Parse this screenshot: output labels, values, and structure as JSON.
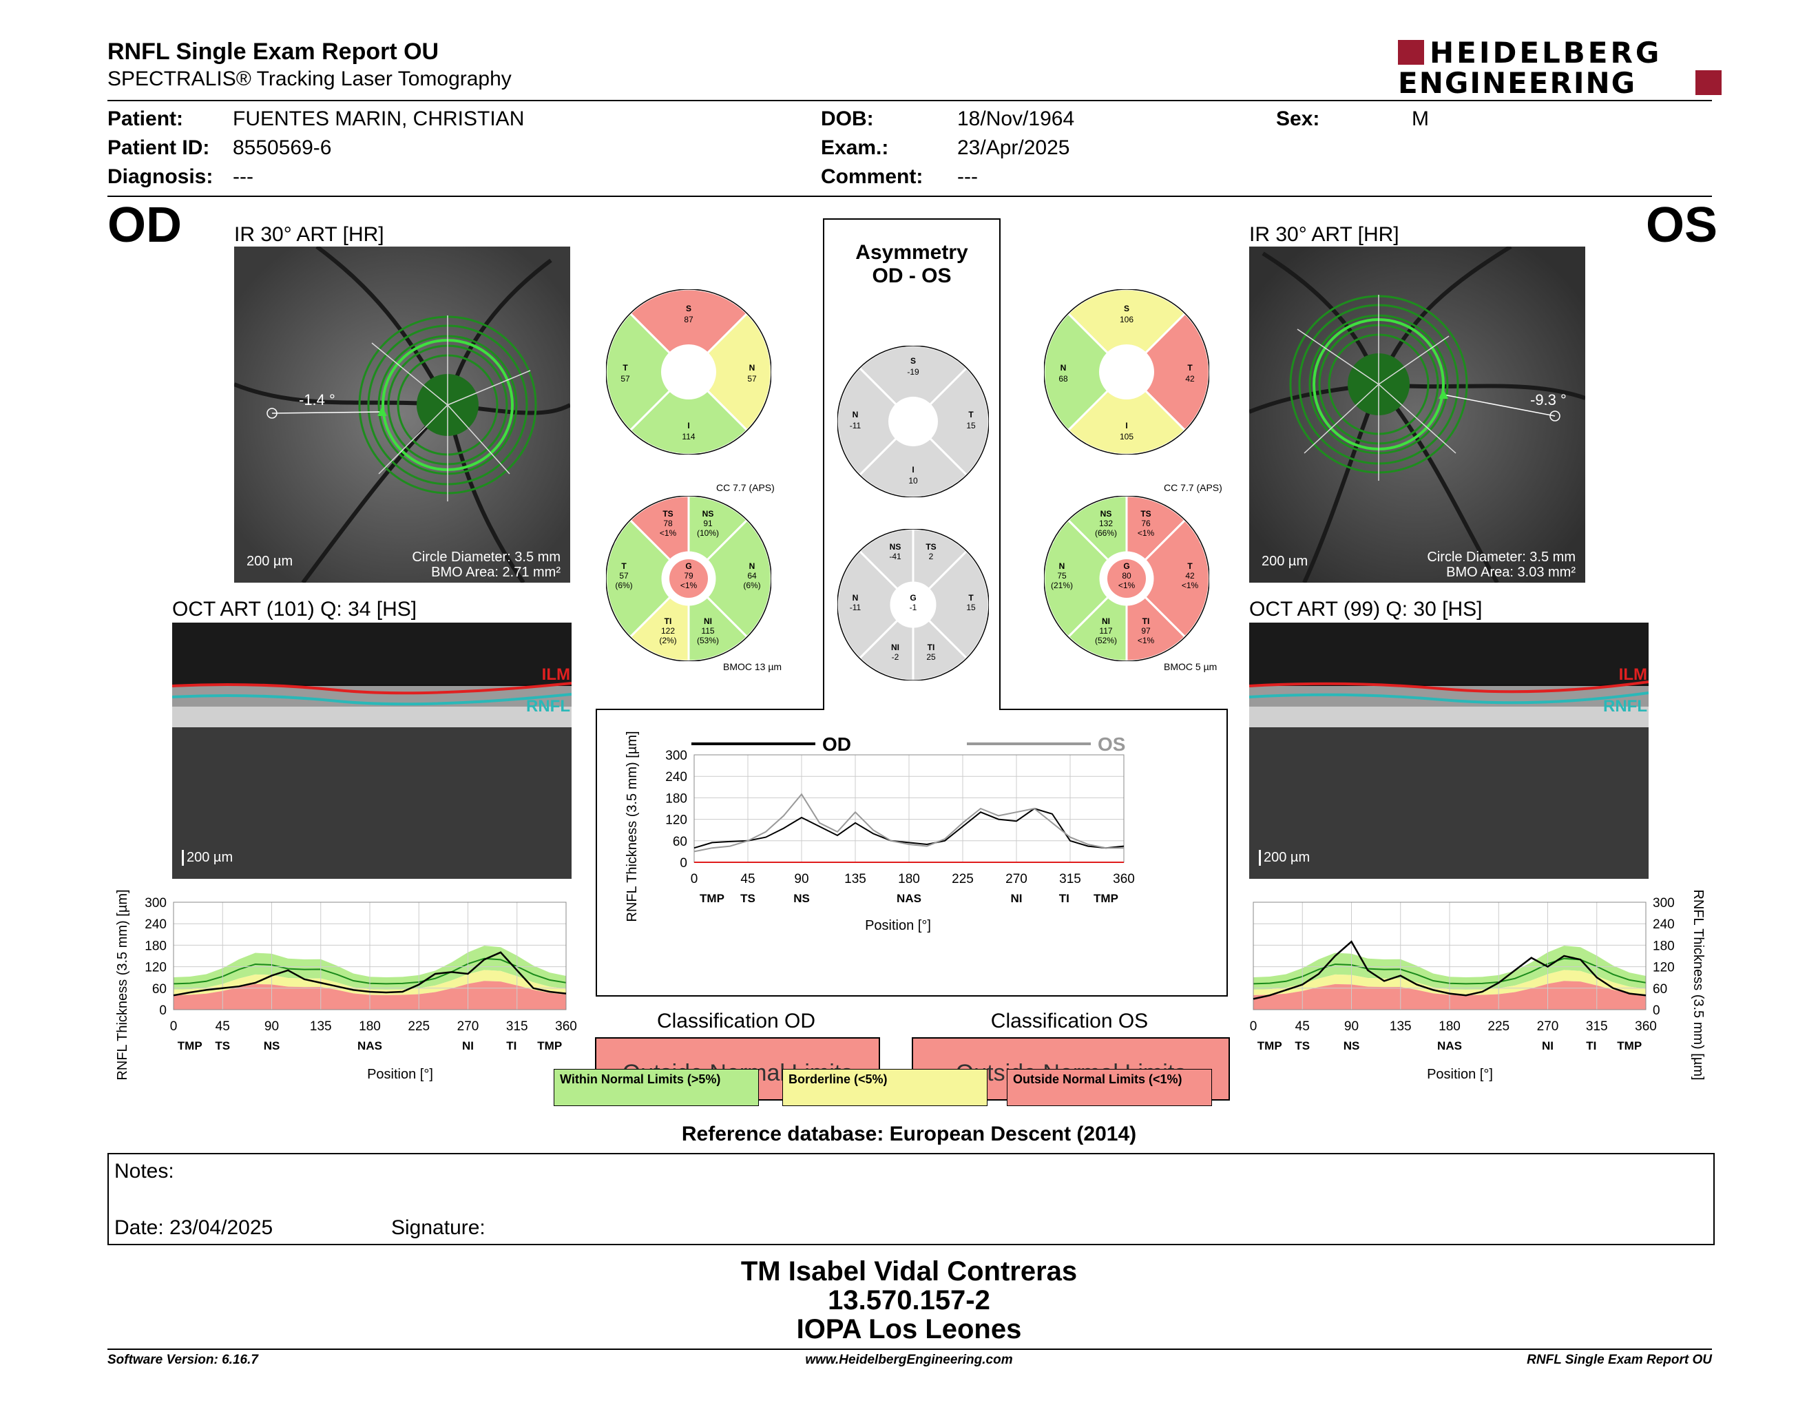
{
  "header": {
    "title": "RNFL Single Exam Report OU",
    "subtitle": "SPECTRALIS® Tracking Laser Tomography",
    "logo_line1": "HEIDELBERG",
    "logo_line2": "ENGINEERING",
    "brand_color": "#9b1b30"
  },
  "patient": {
    "patient_label": "Patient:",
    "patient_value": "FUENTES MARIN, CHRISTIAN",
    "id_label": "Patient ID:",
    "id_value": "8550569-6",
    "diag_label": "Diagnosis:",
    "diag_value": "---",
    "dob_label": "DOB:",
    "dob_value": "18/Nov/1964",
    "exam_label": "Exam.:",
    "exam_value": "23/Apr/2025",
    "comment_label": "Comment:",
    "comment_value": "---",
    "sex_label": "Sex:",
    "sex_value": "M"
  },
  "od": {
    "eye": "OD",
    "ir_label": "IR 30° ART [HR]",
    "angle": "-1.4 °",
    "scale": "200 µm",
    "circle_diameter": "Circle Diameter: 3.5 mm",
    "bmo_area": "BMO Area: 2.71 mm²",
    "oct_label": "OCT ART (101) Q: 34 [HS]",
    "oct_scale": "200 µm",
    "ilm": "ILM",
    "rnfl": "RNFL",
    "sectors4": {
      "S": "87",
      "T": "57",
      "N": "57",
      "I": "114"
    },
    "cc": "CC 7.7 (APS)",
    "bmoc": "BMOC 13 µm",
    "sectors6": {
      "TS": {
        "label": "TS",
        "value": "78",
        "pct": "<1%"
      },
      "NS": {
        "label": "NS",
        "value": "91",
        "pct": "(10%)"
      },
      "T": {
        "label": "T",
        "value": "57",
        "pct": "(6%)"
      },
      "G": {
        "label": "G",
        "value": "79",
        "pct": "<1%"
      },
      "N": {
        "label": "N",
        "value": "64",
        "pct": "(6%)"
      },
      "TI": {
        "label": "TI",
        "value": "122",
        "pct": "(2%)"
      },
      "NI": {
        "label": "NI",
        "value": "115",
        "pct": "(53%)"
      }
    },
    "classification_title": "Classification OD",
    "classification_value": "Outside Normal Limits"
  },
  "os": {
    "eye": "OS",
    "ir_label": "IR 30° ART [HR]",
    "angle": "-9.3 °",
    "scale": "200 µm",
    "circle_diameter": "Circle Diameter: 3.5 mm",
    "bmo_area": "BMO Area: 3.03 mm²",
    "oct_label": "OCT ART (99) Q: 30 [HS]",
    "oct_scale": "200 µm",
    "ilm": "ILM",
    "rnfl": "RNFL",
    "sectors4": {
      "S": "106",
      "N": "68",
      "T": "42",
      "I": "105"
    },
    "cc": "CC 7.7 (APS)",
    "bmoc": "BMOC 5 µm",
    "sectors6": {
      "NS": {
        "label": "NS",
        "value": "132",
        "pct": "(66%)"
      },
      "TS": {
        "label": "TS",
        "value": "76",
        "pct": "<1%"
      },
      "N": {
        "label": "N",
        "value": "75",
        "pct": "(21%)"
      },
      "G": {
        "label": "G",
        "value": "80",
        "pct": "<1%"
      },
      "T": {
        "label": "T",
        "value": "42",
        "pct": "<1%"
      },
      "NI": {
        "label": "NI",
        "value": "117",
        "pct": "(52%)"
      },
      "TI": {
        "label": "TI",
        "value": "97",
        "pct": "<1%"
      }
    },
    "classification_title": "Classification OS",
    "classification_value": "Outside Normal Limits"
  },
  "asymmetry": {
    "title1": "Asymmetry",
    "title2": "OD - OS",
    "sectors4": {
      "S": "-19",
      "N": "-11",
      "T": "15",
      "I": "10"
    },
    "sectors6": {
      "NS": {
        "label": "NS",
        "value": "-41"
      },
      "TS": {
        "label": "TS",
        "value": "2"
      },
      "N": {
        "label": "N",
        "value": "-11"
      },
      "G": {
        "label": "G",
        "value": "-1"
      },
      "T": {
        "label": "T",
        "value": "15"
      },
      "NI": {
        "label": "NI",
        "value": "-2"
      },
      "TI": {
        "label": "TI",
        "value": "25"
      }
    },
    "legend_od": "OD",
    "legend_os": "OS"
  },
  "axes": {
    "ylabel": "RNFL Thickness (3.5 mm) [µm]",
    "xlabel": "Position [°]",
    "yticks": [
      "0",
      "60",
      "120",
      "180",
      "240",
      "300"
    ],
    "asym_yticks": [
      "0",
      "60",
      "120",
      "180",
      "240",
      "300"
    ],
    "xticks": [
      "0",
      "45",
      "90",
      "135",
      "180",
      "225",
      "270",
      "315",
      "360"
    ],
    "sectors": [
      "TMP",
      "TS",
      "NS",
      "NAS",
      "NI",
      "TI",
      "TMP"
    ]
  },
  "chart_data": [
    {
      "type": "line",
      "chart": "od-profile",
      "ylabel": "RNFL Thickness (3.5 mm) [µm]",
      "xlabel": "Position [°]",
      "ylim": [
        0,
        300
      ],
      "xlim": [
        0,
        360
      ],
      "x": [
        0,
        15,
        30,
        45,
        60,
        75,
        90,
        105,
        120,
        135,
        150,
        165,
        180,
        195,
        210,
        225,
        240,
        255,
        270,
        285,
        300,
        315,
        330,
        345,
        360
      ],
      "series": [
        {
          "values": [
            40,
            48,
            55,
            60,
            65,
            75,
            95,
            110,
            85,
            75,
            65,
            55,
            50,
            48,
            50,
            70,
            100,
            105,
            100,
            140,
            160,
            110,
            60,
            50,
            45
          ]
        }
      ]
    },
    {
      "type": "line",
      "chart": "os-profile",
      "ylabel": "RNFL Thickness (3.5 mm) [µm]",
      "xlabel": "Position [°]",
      "ylim": [
        0,
        300
      ],
      "xlim": [
        0,
        360
      ],
      "x": [
        0,
        15,
        30,
        45,
        60,
        75,
        90,
        105,
        120,
        135,
        150,
        165,
        180,
        195,
        210,
        225,
        240,
        255,
        270,
        285,
        300,
        315,
        330,
        345,
        360
      ],
      "series": [
        {
          "values": [
            30,
            40,
            55,
            70,
            100,
            150,
            190,
            110,
            80,
            95,
            70,
            55,
            45,
            40,
            50,
            75,
            110,
            145,
            120,
            150,
            140,
            90,
            60,
            45,
            40
          ]
        }
      ]
    },
    {
      "type": "line",
      "chart": "asymmetry-profile",
      "ylabel": "RNFL Thickness (3.5 mm) [µm]",
      "xlabel": "Position [°]",
      "ylim": [
        0,
        300
      ],
      "xlim": [
        0,
        360
      ],
      "x": [
        0,
        15,
        30,
        45,
        60,
        75,
        90,
        105,
        120,
        135,
        150,
        165,
        180,
        195,
        210,
        225,
        240,
        255,
        270,
        285,
        300,
        315,
        330,
        345,
        360
      ],
      "series": [
        {
          "name": "OD",
          "values": [
            40,
            55,
            58,
            60,
            70,
            95,
            125,
            100,
            75,
            110,
            80,
            60,
            55,
            50,
            60,
            100,
            140,
            120,
            115,
            150,
            135,
            60,
            45,
            40,
            45
          ]
        },
        {
          "name": "OS",
          "values": [
            30,
            40,
            45,
            60,
            85,
            130,
            190,
            110,
            85,
            140,
            90,
            60,
            50,
            45,
            65,
            110,
            150,
            130,
            140,
            150,
            110,
            70,
            50,
            40,
            40
          ]
        }
      ]
    }
  ],
  "classification_legend": {
    "wnl": "Within Normal Limits (>5%)",
    "bl": "Borderline (<5%)",
    "onl": "Outside Normal Limits (<1%)"
  },
  "reference": "Reference database: European Descent (2014)",
  "notes": {
    "notes_label": "Notes:",
    "date_label": "Date: 23/04/2025",
    "signature_label": "Signature:"
  },
  "signature": {
    "name": "TM Isabel Vidal Contreras",
    "rut": "13.570.157-2",
    "org": "IOPA Los Leones"
  },
  "footer": {
    "software": "Software Version: 6.16.7",
    "website": "www.HeidelbergEngineering.com",
    "report": "RNFL Single Exam Report OU"
  },
  "colors": {
    "green": "#b5ec8d",
    "yellow": "#f6f69a",
    "red": "#f5918b",
    "gray": "#d9d9d9",
    "accent": "#e01c1c"
  }
}
